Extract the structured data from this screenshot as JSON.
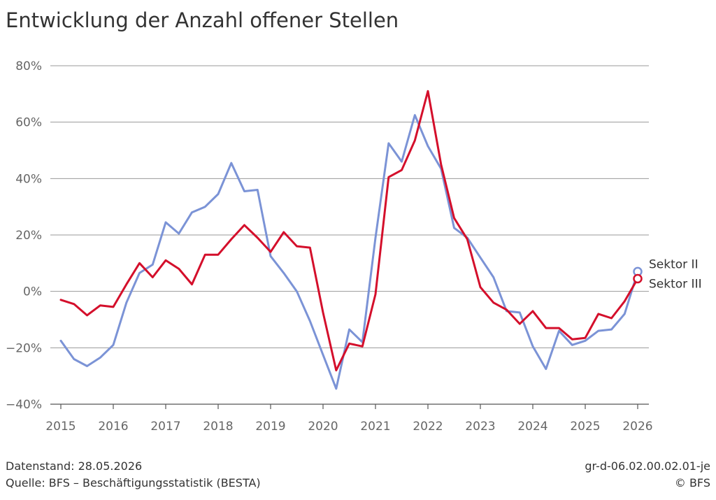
{
  "title": "Entwicklung der Anzahl offener Stellen",
  "footer": {
    "datenstand": "Datenstand: 28.05.2026",
    "quelle": "Quelle: BFS – Beschäftigungsstatistik (BESTA)",
    "code": "gr-d-06.02.00.02.01-je",
    "copyright": "© BFS"
  },
  "colors": {
    "sektor_ii": "#7b93d6",
    "sektor_iii": "#d40f2b",
    "grid": "#9a9a9a",
    "axis": "#555555"
  },
  "chart_data": {
    "type": "line",
    "title": "Entwicklung der Anzahl offener Stellen",
    "xlabel": "",
    "ylabel": "",
    "xlim": [
      2015,
      2026
    ],
    "ylim": [
      -40,
      80
    ],
    "x_ticks": [
      "2015",
      "2016",
      "2017",
      "2018",
      "2019",
      "2020",
      "2021",
      "2022",
      "2023",
      "2024",
      "2025",
      "2026"
    ],
    "y_ticks": [
      {
        "value": -40,
        "label": "−40%"
      },
      {
        "value": -20,
        "label": "−20%"
      },
      {
        "value": 0,
        "label": "0%"
      },
      {
        "value": 20,
        "label": "20%"
      },
      {
        "value": 40,
        "label": "40%"
      },
      {
        "value": 60,
        "label": "60%"
      },
      {
        "value": 80,
        "label": "80%"
      }
    ],
    "grid": true,
    "legend": "end-of-line labels",
    "x": [
      2015.0,
      2015.25,
      2015.5,
      2015.75,
      2016.0,
      2016.25,
      2016.5,
      2016.75,
      2017.0,
      2017.25,
      2017.5,
      2017.75,
      2018.0,
      2018.25,
      2018.5,
      2018.75,
      2019.0,
      2019.25,
      2019.5,
      2019.75,
      2020.0,
      2020.25,
      2020.5,
      2020.75,
      2021.0,
      2021.25,
      2021.5,
      2021.75,
      2022.0,
      2022.25,
      2022.5,
      2022.75,
      2023.0,
      2023.25,
      2023.5,
      2023.75,
      2024.0,
      2024.25,
      2024.5,
      2024.75,
      2025.0,
      2025.25,
      2025.5,
      2025.75,
      2026.0
    ],
    "series": [
      {
        "name": "Sektor II",
        "color": "#7b93d6",
        "values": [
          -17.5,
          -24.0,
          -26.5,
          -23.5,
          -19.0,
          -4.0,
          6.5,
          9.5,
          24.5,
          20.5,
          28.0,
          30.0,
          34.5,
          45.5,
          35.5,
          36.0,
          12.5,
          6.5,
          0.0,
          -10.5,
          -22.5,
          -34.5,
          -13.5,
          -18.0,
          19.0,
          52.5,
          46.0,
          62.5,
          51.5,
          43.5,
          22.5,
          19.0,
          12.0,
          5.0,
          -7.0,
          -7.5,
          -19.5,
          -27.5,
          -14.0,
          -19.0,
          -17.5,
          -14.0,
          -13.5,
          -8.0,
          7.0
        ]
      },
      {
        "name": "Sektor III",
        "color": "#d40f2b",
        "values": [
          -3.0,
          -4.5,
          -8.5,
          -5.0,
          -5.5,
          2.5,
          10.0,
          5.0,
          11.0,
          8.0,
          2.5,
          13.0,
          13.0,
          18.5,
          23.5,
          19.0,
          14.0,
          21.0,
          16.0,
          15.5,
          -7.5,
          -28.0,
          -18.5,
          -19.5,
          -1.0,
          40.5,
          43.0,
          53.5,
          71.0,
          45.0,
          26.0,
          18.5,
          1.5,
          -4.0,
          -6.5,
          -11.5,
          -7.0,
          -13.0,
          -13.0,
          -17.0,
          -16.5,
          -8.0,
          -9.5,
          -3.5,
          4.5
        ]
      }
    ]
  }
}
